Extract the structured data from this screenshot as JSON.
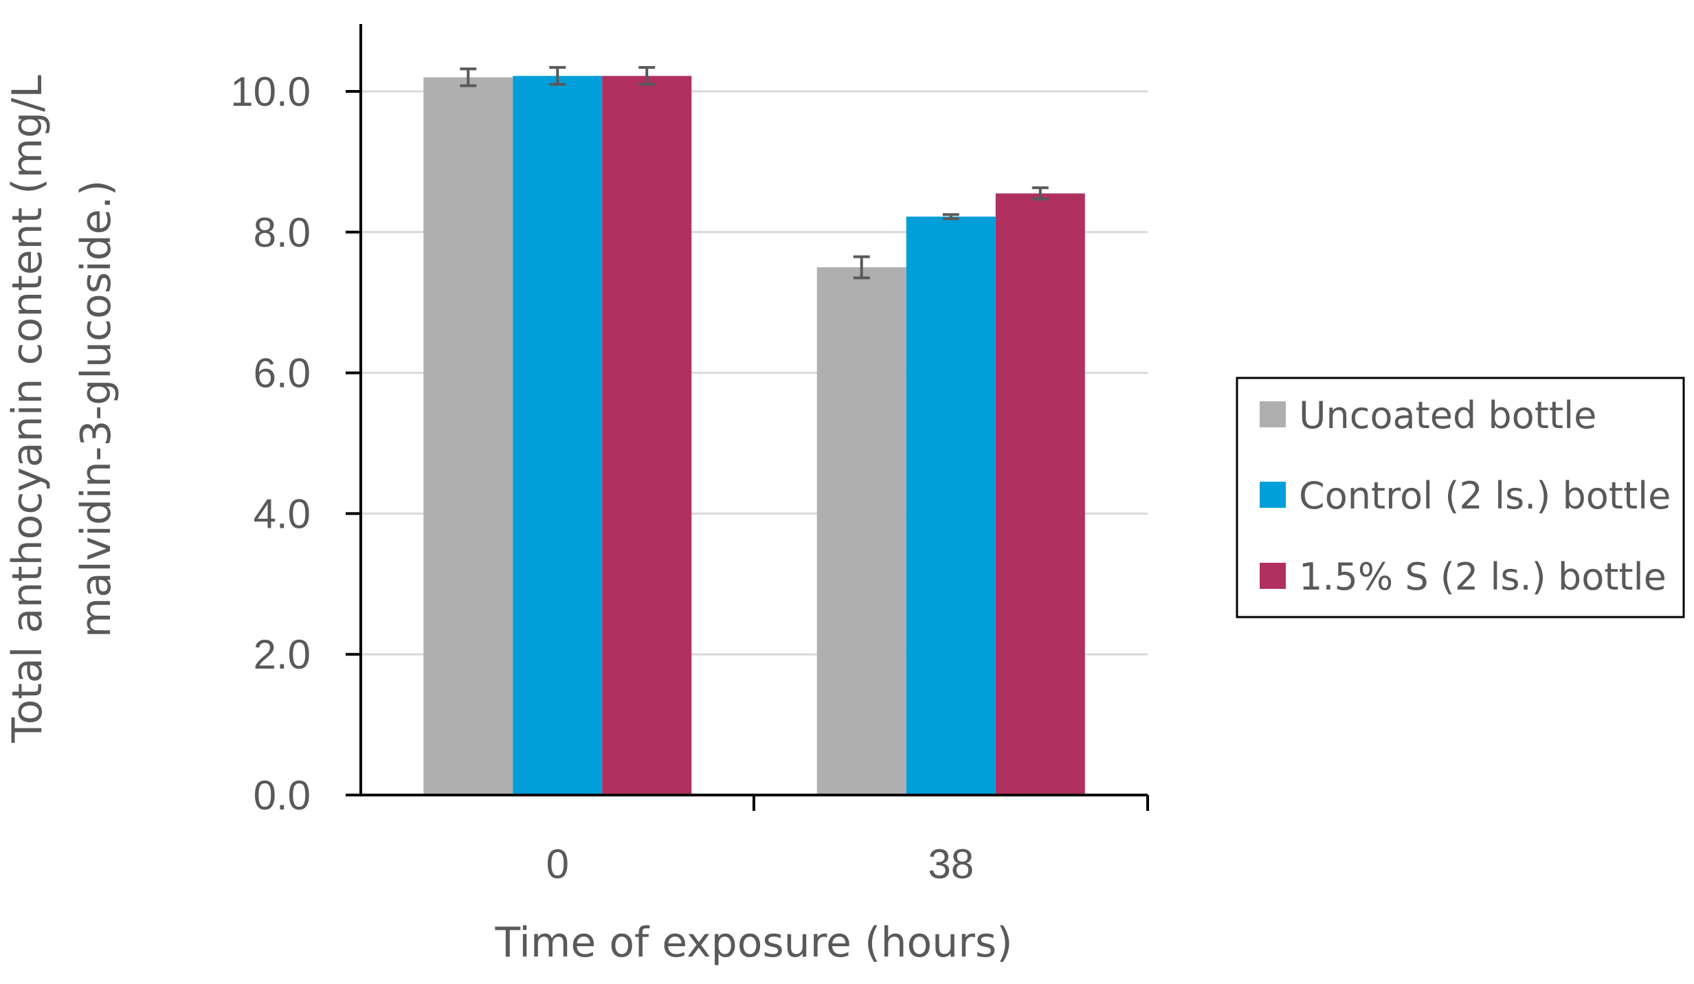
{
  "chart_data": {
    "type": "bar",
    "categories": [
      "0",
      "38"
    ],
    "series": [
      {
        "name": "Uncoated bottle",
        "values": [
          10.2,
          7.5
        ],
        "errors": [
          0.12,
          0.15
        ],
        "color": "#afafaf"
      },
      {
        "name": "Control (2 ls.) bottle",
        "values": [
          10.22,
          8.22
        ],
        "errors": [
          0.12,
          0.03
        ],
        "color": "#009fd9"
      },
      {
        "name": "1.5% S (2 ls.) bottle",
        "values": [
          10.22,
          8.55
        ],
        "errors": [
          0.12,
          0.08
        ],
        "color": "#b03060"
      }
    ],
    "xlabel": "Time of exposure (hours)",
    "ylabel_lines": [
      "Total anthocyanin content (mg/L",
      "malvidin-3-glucoside.)"
    ],
    "ylim": [
      0,
      10
    ],
    "yticks": [
      "0.0",
      "2.0",
      "4.0",
      "6.0",
      "8.0",
      "10.0"
    ],
    "ytick_values": [
      0,
      2,
      4,
      6,
      8,
      10
    ],
    "grid": true,
    "legend_position": "right"
  }
}
